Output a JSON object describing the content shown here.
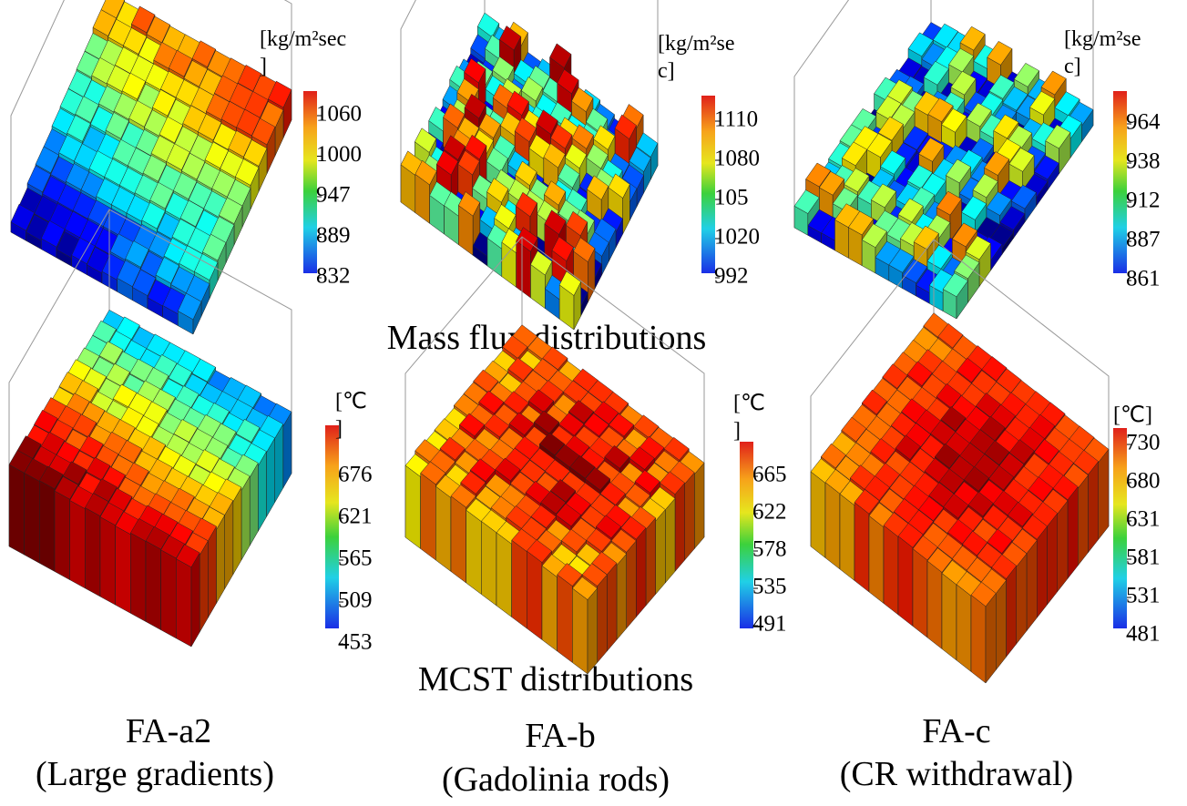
{
  "panels": [
    {
      "unit": [
        "[kg/m²sec",
        "]"
      ],
      "ticks": [
        "1060",
        "1000",
        "947",
        "889",
        "832"
      ]
    },
    {
      "unit": [
        "[kg/m²se",
        "c]"
      ],
      "ticks": [
        "1110",
        "1080",
        "105",
        "1020",
        "992"
      ]
    },
    {
      "unit": [
        "[kg/m²se",
        "c]"
      ],
      "ticks": [
        "964",
        "938",
        "912",
        "887",
        "861"
      ]
    },
    {
      "unit": [
        "[℃",
        "]"
      ],
      "ticks": [
        "676",
        "621",
        "565",
        "509",
        "453"
      ]
    },
    {
      "unit": [
        "[℃",
        "]"
      ],
      "ticks": [
        "665",
        "622",
        "578",
        "535",
        "491"
      ]
    },
    {
      "unit": [
        "[℃]"
      ],
      "ticks": [
        "730",
        "680",
        "631",
        "581",
        "531",
        "481"
      ]
    }
  ],
  "row_captions": [
    "Mass flux distributions",
    "MCST distributions"
  ],
  "columns": [
    {
      "name": "FA-a2",
      "description": "(Large gradients)"
    },
    {
      "name": "FA-b",
      "description": "(Gadolinia rods)"
    },
    {
      "name": "FA-c",
      "description": "(CR withdrawal)"
    }
  ]
}
